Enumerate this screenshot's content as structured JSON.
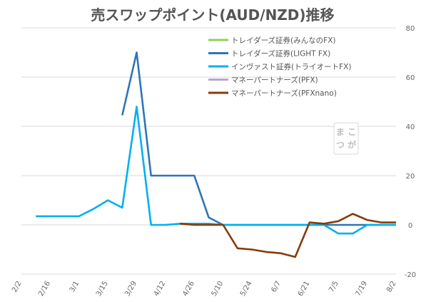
{
  "chart_data": {
    "type": "line",
    "title": "売スワップポイント(AUD/NZD)推移",
    "x": [
      "2/2",
      "2/9",
      "2/16",
      "2/23",
      "3/1",
      "3/8",
      "3/15",
      "3/22",
      "3/29",
      "4/5",
      "4/12",
      "4/19",
      "4/26",
      "5/3",
      "5/10",
      "5/17",
      "5/24",
      "5/31",
      "6/7",
      "6/14",
      "6/21",
      "6/28",
      "7/5",
      "7/12",
      "7/19",
      "7/26",
      "8/2"
    ],
    "xticks": [
      "2/2",
      "2/16",
      "3/1",
      "3/15",
      "3/29",
      "4/12",
      "4/26",
      "5/10",
      "5/24",
      "6/7",
      "6/21",
      "7/5",
      "7/19",
      "8/2"
    ],
    "yticks": [
      80,
      60,
      40,
      20,
      0,
      -20
    ],
    "ylim": [
      -20,
      80
    ],
    "grid": "horizontal",
    "legend_position": "top-right",
    "series": [
      {
        "name": "トレイダーズ証券(みんなのFX)",
        "color": "#92d050",
        "values": [
          null,
          null,
          null,
          null,
          null,
          null,
          null,
          null,
          null,
          null,
          null,
          null,
          null,
          null,
          null,
          null,
          null,
          null,
          null,
          null,
          null,
          null,
          null,
          null,
          null,
          null,
          null
        ]
      },
      {
        "name": "トレイダーズ証券(LIGHT FX)",
        "color": "#2e75b6",
        "values": [
          null,
          null,
          null,
          null,
          null,
          null,
          null,
          44.5,
          70,
          20,
          20,
          20,
          20,
          3,
          0,
          0,
          0,
          0,
          0,
          0,
          0,
          0,
          0,
          0,
          0,
          0,
          0
        ]
      },
      {
        "name": "インヴァスト証券(トライオートFX)",
        "color": "#00b0f0",
        "values": [
          null,
          3.5,
          3.5,
          3.5,
          3.5,
          6.5,
          10,
          7,
          48,
          0,
          0,
          0.5,
          0.5,
          0.5,
          0,
          0,
          0,
          0,
          0,
          0,
          0,
          0,
          -3.5,
          -3.5,
          0,
          0,
          0
        ]
      },
      {
        "name": "マネーパートナーズ(PFX)",
        "color": "#b4a7d6",
        "values": [
          null,
          null,
          null,
          null,
          null,
          null,
          null,
          null,
          null,
          null,
          null,
          null,
          null,
          null,
          null,
          null,
          null,
          null,
          null,
          null,
          null,
          null,
          null,
          null,
          null,
          null,
          null
        ]
      },
      {
        "name": "マネーパートナーズ(PFXnano)",
        "color": "#843c0c",
        "values": [
          null,
          null,
          null,
          null,
          null,
          null,
          null,
          null,
          null,
          null,
          null,
          0.5,
          0,
          0,
          0,
          -9.5,
          -10,
          -11,
          -11.5,
          -13,
          1,
          0.5,
          1.5,
          4.5,
          2,
          1,
          1
        ]
      }
    ]
  },
  "watermark": {
    "line1": "ま こ",
    "line2": "つ が"
  }
}
